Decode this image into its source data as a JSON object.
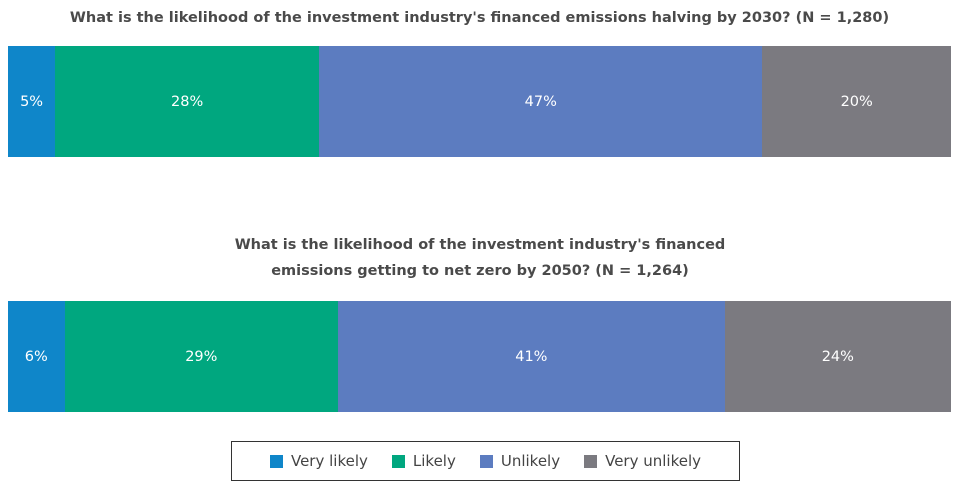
{
  "legend": [
    {
      "name": "Very likely",
      "color": "#0f86c9"
    },
    {
      "name": "Likely",
      "color": "#00a77f"
    },
    {
      "name": "Unlikely",
      "color": "#5c7cc0"
    },
    {
      "name": "Very unlikely",
      "color": "#7b7a80"
    }
  ],
  "chart_data": [
    {
      "type": "bar",
      "title": "What is the likelihood of the investment industry's financed emissions halving by 2030? (N = 1,280)",
      "values": [
        5,
        28,
        47,
        20
      ],
      "value_labels": [
        "5%",
        "28%",
        "47%",
        "20%"
      ],
      "xlim": [
        0,
        100
      ]
    },
    {
      "type": "bar",
      "title": "What is the likelihood of the investment industry's financed emissions getting to net zero by 2050? (N = 1,264)",
      "values": [
        6,
        29,
        41,
        24
      ],
      "value_labels": [
        "6%",
        "29%",
        "41%",
        "24%"
      ],
      "xlim": [
        0,
        100
      ]
    }
  ]
}
